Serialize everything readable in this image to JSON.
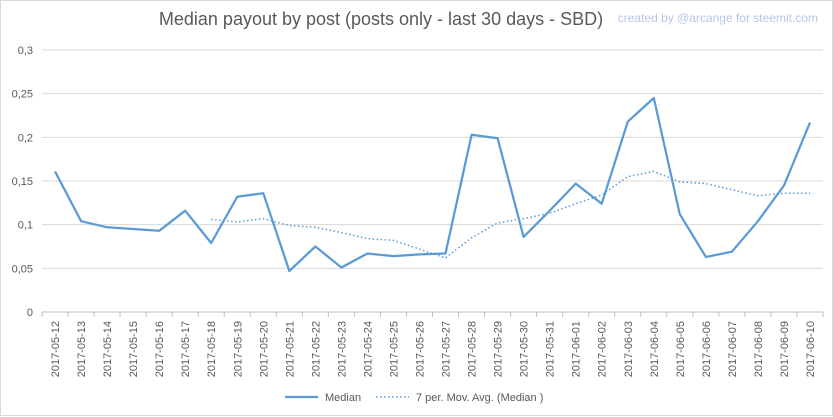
{
  "chart_data": {
    "type": "line",
    "title": "Median payout by post (posts only - last 30 days - SBD)",
    "credit": "created by @arcange for steemit.com",
    "xlabel": "",
    "ylabel": "",
    "ylim": [
      0,
      0.3
    ],
    "yticks": [
      "0",
      "0,05",
      "0,1",
      "0,15",
      "0,2",
      "0,25",
      "0,3"
    ],
    "ytick_values": [
      0,
      0.05,
      0.1,
      0.15,
      0.2,
      0.25,
      0.3
    ],
    "grid": "horizontal",
    "legend_position": "bottom",
    "categories": [
      "2017-05-12",
      "2017-05-13",
      "2017-05-14",
      "2017-05-15",
      "2017-05-16",
      "2017-05-17",
      "2017-05-18",
      "2017-05-19",
      "2017-05-20",
      "2017-05-21",
      "2017-05-22",
      "2017-05-23",
      "2017-05-24",
      "2017-05-25",
      "2017-05-26",
      "2017-05-27",
      "2017-05-28",
      "2017-05-29",
      "2017-05-30",
      "2017-05-31",
      "2017-06-01",
      "2017-06-02",
      "2017-06-03",
      "2017-06-04",
      "2017-06-05",
      "2017-06-06",
      "2017-06-07",
      "2017-06-08",
      "2017-06-09",
      "2017-06-10"
    ],
    "series": [
      {
        "name": "Median",
        "color": "#5b9bd5",
        "style": "solid",
        "values": [
          0.161,
          0.104,
          0.097,
          0.095,
          0.093,
          0.116,
          0.079,
          0.132,
          0.136,
          0.047,
          0.075,
          0.051,
          0.067,
          0.064,
          0.066,
          0.067,
          0.203,
          0.199,
          0.086,
          0.116,
          0.147,
          0.124,
          0.218,
          0.245,
          0.112,
          0.063,
          0.069,
          0.104,
          0.145,
          0.217
        ]
      },
      {
        "name": "7 per. Mov. Avg. (Median )",
        "color": "#5b9bd5",
        "style": "dotted",
        "values": [
          null,
          null,
          null,
          null,
          null,
          null,
          0.106,
          0.103,
          0.107,
          0.099,
          0.097,
          0.091,
          0.084,
          0.082,
          0.072,
          0.062,
          0.085,
          0.102,
          0.107,
          0.113,
          0.124,
          0.134,
          0.155,
          0.161,
          0.149,
          0.147,
          0.14,
          0.133,
          0.136,
          0.136
        ]
      }
    ]
  }
}
